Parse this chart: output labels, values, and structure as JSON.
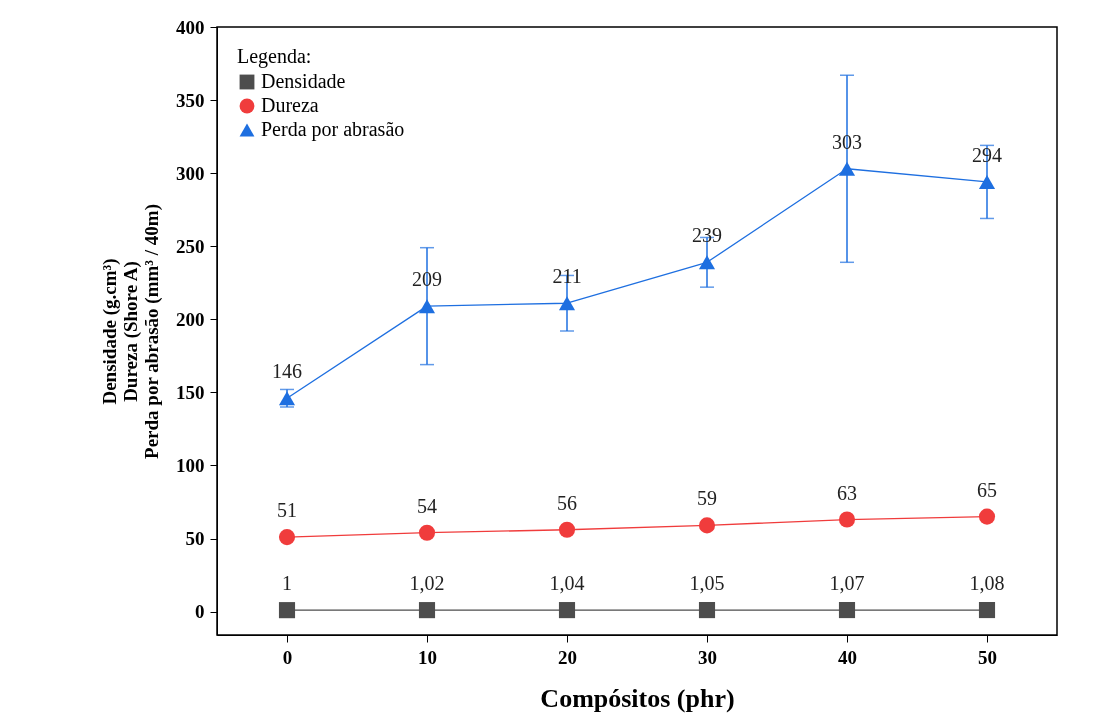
{
  "chart_data": {
    "type": "line",
    "xlabel": "Compósitos (phr)",
    "ylabel": "Densidade (g.cm³)\nDureza (Shore A)\nPerda por abrasão (mm³ / 40m)",
    "legend_title": "Legenda:",
    "x": [
      0,
      10,
      20,
      30,
      40,
      50
    ],
    "xlim": [
      -5,
      55
    ],
    "xticks": [
      0,
      10,
      20,
      30,
      40,
      50
    ],
    "ylim": [
      -16,
      400
    ],
    "yticks": [
      0,
      50,
      100,
      150,
      200,
      250,
      300,
      350,
      400
    ],
    "grid": false,
    "legend": "top left",
    "series": [
      {
        "name": "Densidade",
        "color": "#4d4d4d",
        "marker": "square",
        "values": [
          1,
          1.02,
          1.04,
          1.05,
          1.07,
          1.08
        ],
        "value_labels": [
          "1",
          "1,02",
          "1,04",
          "1,05",
          "1,07",
          "1,08"
        ]
      },
      {
        "name": "Dureza",
        "color": "#f03c3c",
        "marker": "circle",
        "values": [
          51,
          54,
          56,
          59,
          63,
          65
        ],
        "value_labels": [
          "51",
          "54",
          "56",
          "59",
          "63",
          "65"
        ]
      },
      {
        "name": "Perda por abrasão",
        "color": "#1e6fe0",
        "marker": "triangle",
        "values": [
          146,
          209,
          211,
          239,
          303,
          294
        ],
        "value_labels": [
          "146",
          "209",
          "211",
          "239",
          "303",
          "294"
        ],
        "errors": [
          6,
          40,
          19,
          17,
          64,
          25
        ]
      }
    ]
  }
}
